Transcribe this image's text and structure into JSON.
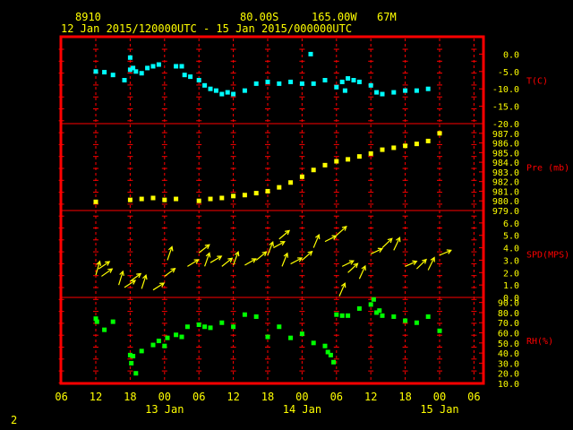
{
  "header": {
    "station_id": "8910",
    "lat": "80.00S",
    "lon": "165.00W",
    "elev": "67M",
    "date_range": "12 Jan 2015/120000UTC - 15 Jan 2015/000000UTC"
  },
  "footer": {
    "page": "2"
  },
  "colors": {
    "frame": "#ff0000",
    "grid": "#ff0000",
    "tick_labels": "#ffff00",
    "panel_labels": "#ff0000",
    "temperature": "#00ffff",
    "pressure": "#ffff00",
    "wind": "#ffff00",
    "rh": "#00ff00"
  },
  "chart_data": [
    {
      "type": "scatter",
      "panel": "temperature",
      "ylabel": "T(C)",
      "ylim": [
        -20,
        5
      ],
      "yticks": [
        "0.0",
        "-5.0",
        "-10.0",
        "-15.0",
        "-20.0"
      ],
      "x_hours": [
        0,
        1.5,
        3,
        5,
        6,
        6,
        6.5,
        7,
        8,
        9,
        10,
        11,
        14,
        15,
        15.5,
        16.5,
        18,
        19,
        20,
        21,
        22,
        23,
        24,
        26,
        28,
        30,
        32,
        34,
        36,
        37.5,
        38,
        40,
        42,
        43,
        43.5,
        44,
        45,
        46,
        48,
        49,
        50,
        52,
        54,
        56,
        58
      ],
      "y": [
        -5.0,
        -5.2,
        -6.0,
        -7.5,
        -4.5,
        -1.0,
        -4.0,
        -5.0,
        -5.5,
        -4.0,
        -3.5,
        -3.0,
        -3.5,
        -3.5,
        -6.0,
        -6.5,
        -7.5,
        -9.0,
        -10.0,
        -10.5,
        -11.5,
        -11.0,
        -11.5,
        -10.5,
        -8.5,
        -8.0,
        -8.5,
        -8.0,
        -8.5,
        0.0,
        -8.5,
        -7.5,
        -9.5,
        -8.0,
        -10.5,
        -7.0,
        -7.5,
        -8.0,
        -9.0,
        -11.0,
        -11.5,
        -11.0,
        -10.5,
        -10.5,
        -10.0
      ]
    },
    {
      "type": "scatter",
      "panel": "pressure",
      "ylabel": "Pre (mb)",
      "ylim": [
        979,
        988
      ],
      "yticks": [
        "987.0",
        "986.0",
        "985.0",
        "984.0",
        "983.0",
        "982.0",
        "981.0",
        "980.0",
        "979.0"
      ],
      "x_hours": [
        0,
        6,
        8,
        10,
        12,
        14,
        18,
        20,
        22,
        24,
        26,
        28,
        30,
        32,
        34,
        36,
        38,
        40,
        42,
        44,
        46,
        48,
        50,
        52,
        54,
        56,
        58,
        60
      ],
      "y": [
        979.9,
        980.1,
        980.2,
        980.3,
        980.1,
        980.2,
        980.0,
        980.2,
        980.3,
        980.5,
        980.6,
        980.8,
        981.0,
        981.4,
        981.9,
        982.5,
        983.2,
        983.7,
        984.1,
        984.3,
        984.6,
        984.9,
        985.3,
        985.5,
        985.7,
        985.9,
        986.2,
        987.0
      ]
    },
    {
      "type": "scatter",
      "panel": "wind",
      "ylabel": "SPD(MPS)",
      "ylim": [
        0,
        7
      ],
      "yticks": [
        "6.0",
        "5.0",
        "4.0",
        "3.0",
        "2.0",
        "1.0",
        "0.0"
      ],
      "x_hours": [
        0,
        0.5,
        1,
        4,
        5,
        6,
        8,
        10,
        12,
        12.5,
        16,
        18,
        19,
        20,
        22,
        24,
        26,
        28,
        30,
        31,
        32,
        32.5,
        34,
        36,
        38,
        40,
        42,
        42.5,
        43,
        44,
        46,
        48,
        50,
        52,
        54,
        56,
        58,
        60
      ],
      "y": [
        1.8,
        2.3,
        1.7,
        1.0,
        0.8,
        1.3,
        0.7,
        0.6,
        1.7,
        3.0,
        2.5,
        3.6,
        2.5,
        2.8,
        2.5,
        2.6,
        2.6,
        3.0,
        3.4,
        4.0,
        4.7,
        2.5,
        2.7,
        3.0,
        4.0,
        4.5,
        5.0,
        0.1,
        2.5,
        2.0,
        1.5,
        3.5,
        4.0,
        3.8,
        2.5,
        2.3,
        2.2,
        3.4
      ]
    },
    {
      "type": "scatter",
      "panel": "rh",
      "ylabel": "RH(%)",
      "ylim": [
        10,
        95
      ],
      "yticks": [
        "90.0",
        "80.0",
        "70.0",
        "60.0",
        "50.0",
        "40.0",
        "30.0",
        "20.0",
        "10.0"
      ],
      "x_hours": [
        0,
        0.2,
        1.5,
        3,
        6,
        6.2,
        6.5,
        7,
        8,
        10,
        11,
        12,
        12.5,
        14,
        15,
        16,
        18,
        19,
        20,
        22,
        24,
        26,
        28,
        30,
        32,
        34,
        36,
        38,
        40,
        40.5,
        41,
        41.5,
        42,
        43,
        44,
        46,
        48,
        48.5,
        49,
        49.5,
        50,
        52,
        54,
        56,
        58,
        60
      ],
      "y": [
        74,
        71,
        63,
        71,
        38,
        30,
        37,
        20,
        42,
        48,
        52,
        47,
        55,
        58,
        56,
        66,
        68,
        66,
        65,
        70,
        66,
        78,
        76,
        56,
        66,
        55,
        59,
        50,
        47,
        41,
        38,
        31,
        78,
        77,
        77,
        84,
        88,
        93,
        80,
        82,
        77,
        76,
        72,
        70,
        76,
        62
      ]
    }
  ],
  "x_axis": {
    "ticks": [
      "06",
      "12",
      "18",
      "00",
      "06",
      "12",
      "18",
      "00",
      "06",
      "12",
      "18",
      "00",
      "06"
    ],
    "day_labels": [
      "13 Jan",
      "14 Jan",
      "15 Jan"
    ]
  }
}
